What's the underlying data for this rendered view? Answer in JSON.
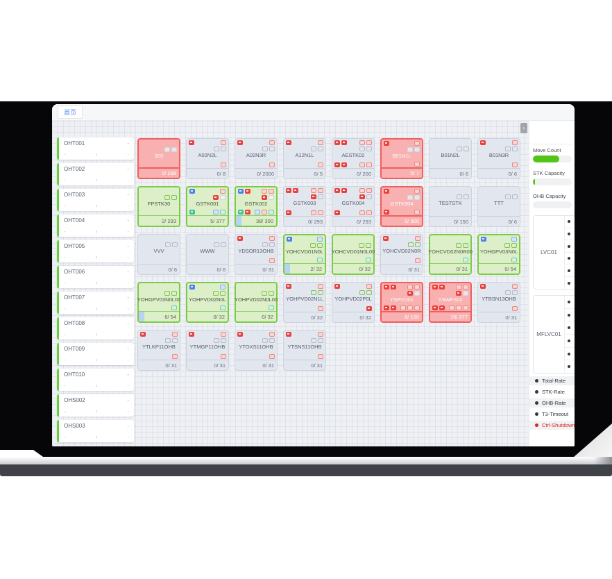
{
  "window": {
    "tab_label": "首页",
    "collapse_glyph": "›"
  },
  "vehicles": {
    "placeholder": "-",
    "chevron": "›",
    "items": [
      {
        "id": "OHT001"
      },
      {
        "id": "OHT002"
      },
      {
        "id": "OHT003"
      },
      {
        "id": "OHT004"
      },
      {
        "id": "OHT005"
      },
      {
        "id": "OHT006"
      },
      {
        "id": "OHT007"
      },
      {
        "id": "OHT008"
      },
      {
        "id": "OHT009"
      },
      {
        "id": "OHT010"
      },
      {
        "id": "OHS002"
      },
      {
        "id": "OHS003"
      }
    ]
  },
  "station_grid": {
    "rows": [
      [
        {
          "name": "300",
          "state": "red",
          "count": "0/ 298",
          "tl": [],
          "tr": [],
          "mr": [
            "lightgray",
            "lightgray"
          ],
          "bl": [],
          "br": [],
          "prog": false
        },
        {
          "name": "A02N2L",
          "state": "gray",
          "count": "0/ 8",
          "tl": [
            "red"
          ],
          "tr": [
            "pink"
          ],
          "mr": [
            "outline",
            "outline"
          ],
          "bl": [],
          "br": [
            "pink"
          ],
          "prog": false
        },
        {
          "name": "A02N3R",
          "state": "gray",
          "count": "0/ 2000",
          "tl": [
            "red"
          ],
          "tr": [
            "pink"
          ],
          "mr": [
            "outline",
            "outline"
          ],
          "bl": [],
          "br": [
            "pink"
          ],
          "prog": false
        },
        {
          "name": "A12N1L",
          "state": "gray",
          "count": "0/ 5",
          "tl": [
            "red"
          ],
          "tr": [
            "pink"
          ],
          "mr": [
            "outline",
            "outline"
          ],
          "bl": [],
          "br": [
            "pink"
          ],
          "prog": false
        },
        {
          "name": "AESTK02",
          "state": "gray",
          "count": "0/ 200",
          "tl": [
            "red",
            "red"
          ],
          "tr": [
            "pink",
            "pink"
          ],
          "mr": [
            "outline",
            "outline"
          ],
          "bl": [
            "red",
            "red"
          ],
          "br": [
            "pink",
            "pink"
          ],
          "prog": false
        },
        {
          "name": "B01N1L",
          "state": "red",
          "count": "0/ 7",
          "tl": [
            "red"
          ],
          "tr": [
            "pink"
          ],
          "mr": [
            "lightgray",
            "lightgray"
          ],
          "bl": [],
          "br": [
            "pink"
          ],
          "prog": false
        },
        {
          "name": "B01N2L",
          "state": "gray",
          "count": "0/ 6",
          "tl": [],
          "tr": [],
          "mr": [
            "outline",
            "outline"
          ],
          "bl": [],
          "br": [],
          "prog": false
        },
        {
          "name": "B01N3R",
          "state": "gray",
          "count": "0/ 6",
          "tl": [
            "red"
          ],
          "tr": [
            "pink"
          ],
          "mr": [
            "outline",
            "outline"
          ],
          "bl": [],
          "br": [
            "pink"
          ],
          "prog": false
        }
      ],
      [
        {
          "name": "FPSTK30",
          "state": "green",
          "count": "2/ 293",
          "tl": [],
          "tr": [],
          "mr": [
            "goutline",
            "goutline"
          ],
          "bl": [],
          "br": [],
          "prog": false
        },
        {
          "name": "GSTK001",
          "state": "green",
          "count": "5/ 377",
          "tl": [
            "blue"
          ],
          "tr": [
            "pink"
          ],
          "mr": [
            "red",
            "white"
          ],
          "bl": [
            "teal"
          ],
          "br": [
            "lightblue",
            "lightteal"
          ],
          "prog": false
        },
        {
          "name": "GSTK002",
          "state": "green",
          "count": "38/ 300",
          "tl": [
            "blue",
            "red"
          ],
          "tr": [
            "pink",
            "pink"
          ],
          "mr": [
            "red",
            "white"
          ],
          "bl": [
            "teal",
            "red"
          ],
          "br": [
            "lightblue",
            "lightred",
            "lightteal"
          ],
          "prog": true
        },
        {
          "name": "GSTK003",
          "state": "gray",
          "count": "0/ 293",
          "tl": [
            "red",
            "red"
          ],
          "tr": [
            "pink",
            "pink"
          ],
          "mr": [
            "red",
            "outline"
          ],
          "bl": [
            "red"
          ],
          "br": [
            "pink",
            "pink"
          ],
          "prog": false
        },
        {
          "name": "GSTK004",
          "state": "gray",
          "count": "0/ 293",
          "tl": [
            "red",
            "red"
          ],
          "tr": [
            "pink",
            "pink"
          ],
          "mr": [
            "red",
            "outline"
          ],
          "bl": [
            "red"
          ],
          "br": [
            "pink",
            "pink"
          ],
          "prog": false
        },
        {
          "name": "GSTK904",
          "state": "red",
          "count": "0/ 300",
          "tl": [
            "red"
          ],
          "tr": [
            "pink"
          ],
          "mr": [
            "lightgray",
            "lightgray"
          ],
          "bl": [
            "red"
          ],
          "br": [
            "pink"
          ],
          "prog": false
        },
        {
          "name": "TESTSTK",
          "state": "gray",
          "count": "0/ 150",
          "tl": [],
          "tr": [],
          "mr": [
            "outline",
            "outline"
          ],
          "bl": [],
          "br": [],
          "prog": false
        },
        {
          "name": "TTT",
          "state": "gray",
          "count": "0/ 6",
          "tl": [],
          "tr": [],
          "mr": [
            "outline",
            "outline"
          ],
          "bl": [],
          "br": [],
          "prog": false
        }
      ],
      [
        {
          "name": "VVV",
          "state": "gray",
          "count": "0/ 6",
          "tl": [],
          "tr": [],
          "mr": [
            "outline",
            "outline"
          ],
          "bl": [],
          "br": [],
          "prog": false
        },
        {
          "name": "WWW",
          "state": "gray",
          "count": "0/ 6",
          "tl": [],
          "tr": [],
          "mr": [
            "outline",
            "outline"
          ],
          "bl": [],
          "br": [],
          "prog": false
        },
        {
          "name": "YDSOR13OHB",
          "state": "gray",
          "count": "0/ 31",
          "tl": [
            "red"
          ],
          "tr": [
            "pink"
          ],
          "mr": [
            "outline",
            "outline"
          ],
          "bl": [],
          "br": [
            "pink"
          ],
          "prog": false
        },
        {
          "name": "YOHCVD01N0L",
          "state": "green",
          "count": "2/ 32",
          "tl": [
            "blue"
          ],
          "tr": [
            "lightblue"
          ],
          "mr": [
            "goutline",
            "goutline"
          ],
          "bl": [],
          "br": [
            "lightteal"
          ],
          "prog": true
        },
        {
          "name": "YOHCVD01N0L00",
          "state": "green",
          "count": "0/ 32",
          "tl": [],
          "tr": [],
          "mr": [
            "goutline",
            "goutline"
          ],
          "bl": [],
          "br": [
            "lightteal"
          ],
          "prog": false
        },
        {
          "name": "YOHCVD02N0R",
          "state": "gray",
          "count": "0/ 31",
          "tl": [
            "red"
          ],
          "tr": [
            "pink"
          ],
          "mr": [
            "goutline",
            "goutline"
          ],
          "bl": [],
          "br": [
            "pink"
          ],
          "prog": false
        },
        {
          "name": "YOHCVD02N0R00",
          "state": "green",
          "count": "0/ 31",
          "tl": [],
          "tr": [],
          "mr": [
            "goutline",
            "goutline"
          ],
          "bl": [],
          "br": [
            "lightteal"
          ],
          "prog": false
        },
        {
          "name": "YOHGPV03N0L",
          "state": "green",
          "count": "0/ 54",
          "tl": [
            "blue"
          ],
          "tr": [
            "lightblue"
          ],
          "mr": [
            "goutline",
            "goutline"
          ],
          "bl": [],
          "br": [
            "lightteal"
          ],
          "prog": false
        }
      ],
      [
        {
          "name": "YOHGPV03N0L00",
          "state": "green",
          "count": "6/ 54",
          "tl": [],
          "tr": [],
          "mr": [
            "goutline",
            "goutline"
          ],
          "bl": [],
          "br": [
            "lightteal"
          ],
          "prog": true
        },
        {
          "name": "YOHPVD02N0L",
          "state": "green",
          "count": "0/ 32",
          "tl": [
            "blue"
          ],
          "tr": [
            "lightblue"
          ],
          "mr": [
            "goutline",
            "goutline"
          ],
          "bl": [],
          "br": [
            "lightteal"
          ],
          "prog": false
        },
        {
          "name": "YOHPVD02N0L00",
          "state": "green",
          "count": "0/ 32",
          "tl": [],
          "tr": [],
          "mr": [
            "goutline",
            "goutline"
          ],
          "bl": [],
          "br": [
            "lightteal"
          ],
          "prog": false
        },
        {
          "name": "YOHPVD02N1L",
          "state": "gray",
          "count": "0/ 32",
          "tl": [
            "red"
          ],
          "tr": [
            "pink"
          ],
          "mr": [
            "goutline",
            "goutline"
          ],
          "bl": [],
          "br": [
            "pink"
          ],
          "prog": false
        },
        {
          "name": "YOHPVD02P0L",
          "state": "gray",
          "count": "0/ 32",
          "tl": [
            "red"
          ],
          "tr": [
            "pink"
          ],
          "mr": [
            "goutline",
            "goutline"
          ],
          "bl": [],
          "br": [
            "red"
          ],
          "prog": false
        },
        {
          "name": "YSPVD01",
          "state": "red",
          "count": "6/ 150",
          "tl": [
            "red",
            "red"
          ],
          "tr": [
            "pink",
            "pink"
          ],
          "mr": [
            "red",
            "lightgray"
          ],
          "bl": [
            "red",
            "red"
          ],
          "br": [
            "lightred",
            "lightred",
            "pink"
          ],
          "prog": false
        },
        {
          "name": "YSWFS02",
          "state": "red",
          "count": "15/ 377",
          "tl": [
            "red",
            "red"
          ],
          "tr": [
            "pink",
            "pink"
          ],
          "mr": [
            "red",
            "lightgray"
          ],
          "bl": [
            "red",
            "red"
          ],
          "br": [
            "lightred",
            "lightred",
            "pink"
          ],
          "prog": false
        },
        {
          "name": "YTBSN13OHB",
          "state": "gray",
          "count": "0/ 31",
          "tl": [
            "red"
          ],
          "tr": [
            "pink"
          ],
          "mr": [
            "outline",
            "outline"
          ],
          "bl": [],
          "br": [
            "pink"
          ],
          "prog": false
        }
      ],
      [
        {
          "name": "YTLKP11OHB",
          "state": "gray",
          "count": "0/ 31",
          "tl": [
            "red"
          ],
          "tr": [
            "pink"
          ],
          "mr": [
            "outline",
            "outline"
          ],
          "bl": [],
          "br": [
            "pink"
          ],
          "prog": false
        },
        {
          "name": "YTMGP11OHB",
          "state": "gray",
          "count": "0/ 31",
          "tl": [
            "red"
          ],
          "tr": [
            "pink"
          ],
          "mr": [
            "outline",
            "outline"
          ],
          "bl": [],
          "br": [
            "pink"
          ],
          "prog": false
        },
        {
          "name": "YTOXS11OHB",
          "state": "gray",
          "count": "0/ 31",
          "tl": [
            "red"
          ],
          "tr": [
            "pink"
          ],
          "mr": [
            "outline",
            "outline"
          ],
          "bl": [],
          "br": [
            "pink"
          ],
          "prog": false
        },
        {
          "name": "YTSNS11OHB",
          "state": "gray",
          "count": "0/ 31",
          "tl": [
            "red"
          ],
          "tr": [
            "pink"
          ],
          "mr": [
            "outline",
            "outline"
          ],
          "bl": [],
          "br": [
            "pink"
          ],
          "prog": false
        }
      ]
    ]
  },
  "right_panel": {
    "gauges": [
      {
        "label": "Move Count",
        "percent": 68,
        "color": "#52c41a"
      },
      {
        "label": "STK Capacity",
        "percent": 5,
        "color": "#52c41a"
      },
      {
        "label": "OHB Capacity",
        "percent": 0,
        "color": "#52c41a"
      }
    ],
    "bays": [
      {
        "name": "LVC01",
        "slot_count": 6
      },
      {
        "name": "MFLVC01",
        "slot_count": 6
      }
    ],
    "legend": [
      {
        "label": "Total-Rate",
        "color": "#34383f",
        "striped": true
      },
      {
        "label": "STK-Rate",
        "color": "#34383f",
        "striped": false
      },
      {
        "label": "OHB-Rate",
        "color": "#34383f",
        "striped": true
      },
      {
        "label": "T3-Timeout",
        "color": "#34383f",
        "striped": false
      },
      {
        "label": "Ctrl-Shutdown",
        "color": "#e02020",
        "striped": true
      }
    ]
  }
}
